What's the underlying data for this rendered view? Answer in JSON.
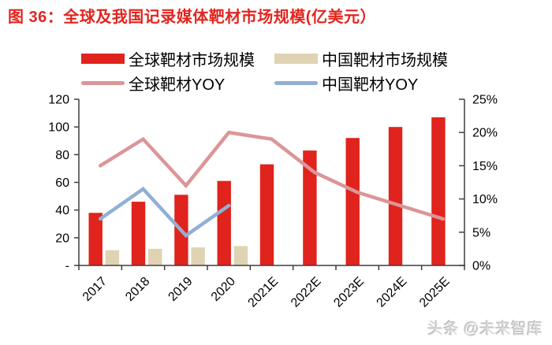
{
  "title": "图 36：全球及我国记录媒体靶材市场规模(亿美元）",
  "watermark": "头条 @未来智库",
  "colors": {
    "title": "#e2251f",
    "global_bar": "#e0231c",
    "china_bar": "#dfd3b3",
    "global_yoy_line": "#dc9598",
    "china_yoy_line": "#92afd5",
    "axis": "#3f3f3f",
    "tick_label": "#000000"
  },
  "legend": [
    {
      "label": "全球靶材市场规模",
      "type": "bar",
      "color_key": "global_bar"
    },
    {
      "label": "中国靶材市场规模",
      "type": "bar",
      "color_key": "china_bar"
    },
    {
      "label": "全球靶材YOY",
      "type": "line",
      "color_key": "global_yoy_line"
    },
    {
      "label": "中国靶材YOY",
      "type": "line",
      "color_key": "china_yoy_line"
    }
  ],
  "chart_data": {
    "type": "bar",
    "subtype": "clustered-bar-with-lines",
    "title": "图 36：全球及我国记录媒体靶材市场规模(亿美元）",
    "categories": [
      "2017",
      "2018",
      "2019",
      "2020",
      "2021E",
      "2022E",
      "2023E",
      "2024E",
      "2025E"
    ],
    "bar_series": [
      {
        "name": "全球靶材市场规模",
        "axis": "left",
        "unit": "亿美元",
        "values": [
          38,
          46,
          51,
          61,
          73,
          83,
          92,
          100,
          107
        ]
      },
      {
        "name": "中国靶材市场规模",
        "axis": "left",
        "unit": "亿美元",
        "values": [
          11,
          12,
          13,
          14,
          null,
          null,
          null,
          null,
          null
        ]
      }
    ],
    "line_series": [
      {
        "name": "全球靶材YOY",
        "axis": "right",
        "unit": "%",
        "values": [
          15,
          19,
          12,
          20,
          19,
          14,
          11,
          9,
          7
        ]
      },
      {
        "name": "中国靶材YOY",
        "axis": "right",
        "unit": "%",
        "values": [
          7,
          11.5,
          4.5,
          9,
          null,
          null,
          null,
          null,
          null
        ]
      }
    ],
    "left_axis": {
      "min": 0,
      "max": 120,
      "step": 20,
      "tick_labels": [
        "-",
        "20",
        "40",
        "60",
        "80",
        "100",
        "120"
      ]
    },
    "right_axis": {
      "min": 0,
      "max": 25,
      "step": 5,
      "tick_labels": [
        "0%",
        "5%",
        "10%",
        "15%",
        "20%",
        "25%"
      ]
    },
    "grid": false,
    "legend_position": "top"
  }
}
